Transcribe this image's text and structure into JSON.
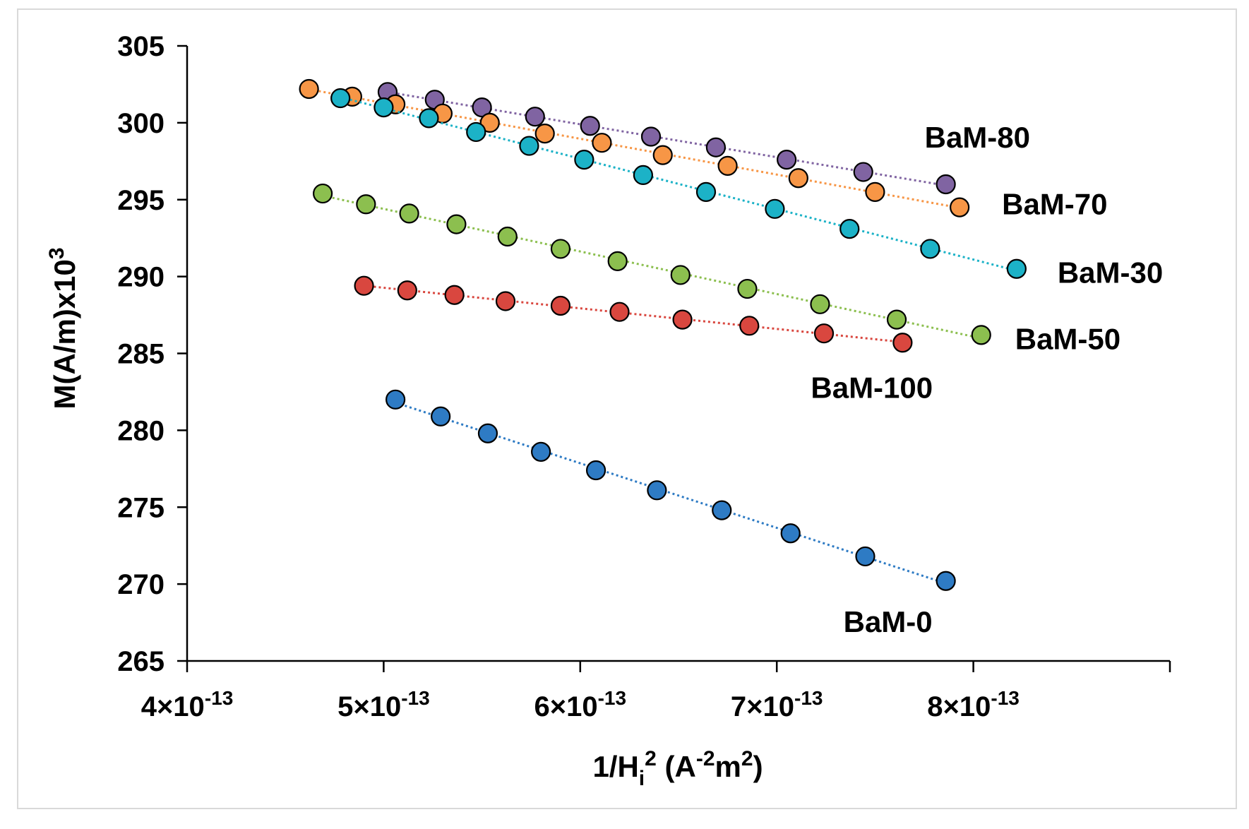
{
  "chart_data": {
    "type": "scatter",
    "title": "",
    "xlabel": {
      "base": "1/H",
      "sub": "i",
      "sup": "2",
      "units_open": " (A",
      "units_sup1": "-2",
      "units_mid": "m",
      "units_sup2": "2",
      "units_close": ")"
    },
    "ylabel": {
      "base": "M(A/m)x10",
      "sup": "3"
    },
    "xlim": [
      4e-13,
      9e-13
    ],
    "ylim": [
      265,
      305
    ],
    "grid": false,
    "y_ticks": [
      "265",
      "270",
      "275",
      "280",
      "285",
      "290",
      "295",
      "300",
      "305"
    ],
    "y_tick_values": [
      265,
      270,
      275,
      280,
      285,
      290,
      295,
      300,
      305
    ],
    "x_ticks": [
      {
        "value": 4e-13,
        "mantissa": "4×10",
        "exp": "-13"
      },
      {
        "value": 5e-13,
        "mantissa": "5×10",
        "exp": "-13"
      },
      {
        "value": 6e-13,
        "mantissa": "6×10",
        "exp": "-13"
      },
      {
        "value": 7e-13,
        "mantissa": "7×10",
        "exp": "-13"
      },
      {
        "value": 8e-13,
        "mantissa": "8×10",
        "exp": "-13"
      }
    ],
    "x_minor_tick_values": [
      9e-13
    ],
    "series": [
      {
        "name": "BaM-80",
        "label": "BaM-80",
        "color": "#8064a2",
        "x": [
          5.02e-13,
          5.26e-13,
          5.5e-13,
          5.77e-13,
          6.05e-13,
          6.36e-13,
          6.69e-13,
          7.05e-13,
          7.44e-13,
          7.86e-13
        ],
        "y": [
          302.0,
          301.5,
          301.0,
          300.4,
          299.8,
          299.1,
          298.4,
          297.6,
          296.8,
          296.0
        ]
      },
      {
        "name": "BaM-70",
        "label": "BaM-70",
        "color": "#f79646",
        "x": [
          4.62e-13,
          4.84e-13,
          5.06e-13,
          5.3e-13,
          5.54e-13,
          5.82e-13,
          6.11e-13,
          6.42e-13,
          6.75e-13,
          7.11e-13,
          7.5e-13,
          7.93e-13
        ],
        "y": [
          302.2,
          301.7,
          301.2,
          300.6,
          300.0,
          299.3,
          298.7,
          297.9,
          297.2,
          296.4,
          295.5,
          294.5
        ]
      },
      {
        "name": "BaM-30",
        "label": "BaM-30",
        "color": "#1cb2c7",
        "x": [
          4.78e-13,
          5e-13,
          5.23e-13,
          5.47e-13,
          5.74e-13,
          6.02e-13,
          6.32e-13,
          6.64e-13,
          6.99e-13,
          7.37e-13,
          7.78e-13,
          8.22e-13
        ],
        "y": [
          301.6,
          301.0,
          300.3,
          299.4,
          298.5,
          297.6,
          296.6,
          295.5,
          294.4,
          293.1,
          291.8,
          290.5
        ]
      },
      {
        "name": "BaM-50",
        "label": "BaM-50",
        "color": "#8cbf4f",
        "x": [
          4.69e-13,
          4.91e-13,
          5.13e-13,
          5.37e-13,
          5.63e-13,
          5.9e-13,
          6.19e-13,
          6.51e-13,
          6.85e-13,
          7.22e-13,
          7.61e-13,
          8.04e-13
        ],
        "y": [
          295.4,
          294.7,
          294.1,
          293.4,
          292.6,
          291.8,
          291.0,
          290.1,
          289.2,
          288.2,
          287.2,
          286.2
        ]
      },
      {
        "name": "BaM-100",
        "label": "BaM-100",
        "color": "#d9473f",
        "x": [
          4.9e-13,
          5.12e-13,
          5.36e-13,
          5.62e-13,
          5.9e-13,
          6.2e-13,
          6.52e-13,
          6.86e-13,
          7.24e-13,
          7.64e-13
        ],
        "y": [
          289.4,
          289.1,
          288.8,
          288.4,
          288.1,
          287.7,
          287.2,
          286.8,
          286.3,
          285.7
        ]
      },
      {
        "name": "BaM-0",
        "label": "BaM-0",
        "color": "#2e7bc4",
        "x": [
          5.06e-13,
          5.29e-13,
          5.53e-13,
          5.8e-13,
          6.08e-13,
          6.39e-13,
          6.72e-13,
          7.07e-13,
          7.45e-13,
          7.86e-13
        ],
        "y": [
          282.0,
          280.9,
          279.8,
          278.6,
          277.4,
          276.1,
          274.8,
          273.3,
          271.8,
          270.2
        ]
      }
    ]
  }
}
